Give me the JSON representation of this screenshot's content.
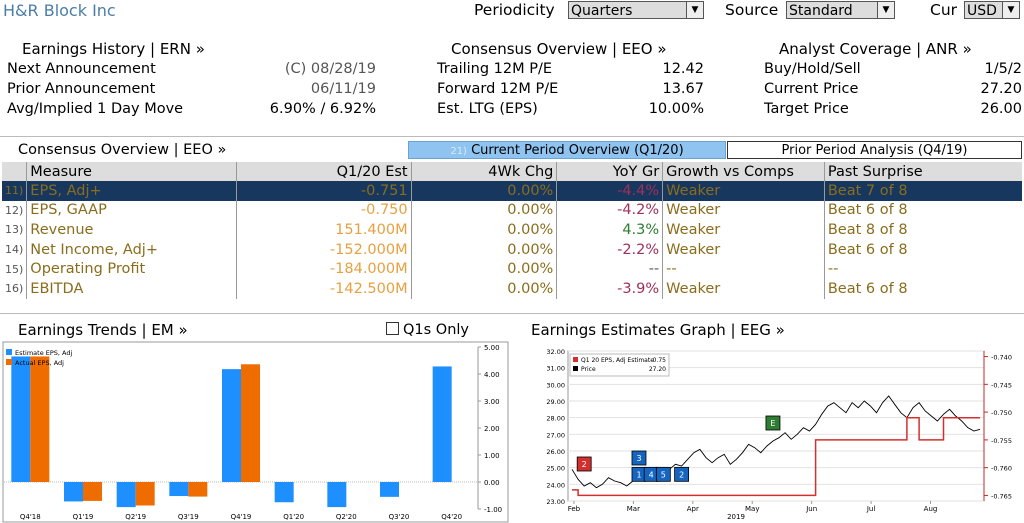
{
  "header": {
    "company": "H&R Block Inc",
    "periodicity_label": "Periodicity",
    "periodicity_value": "Quarters",
    "source_label": "Source",
    "source_value": "Standard",
    "cur_label": "Cur",
    "cur_value": "USD"
  },
  "earnings_history": {
    "title": "Earnings History | ERN »",
    "rows": [
      {
        "label": "Next Announcement",
        "value": "(C)  08/28/19"
      },
      {
        "label": "Prior Announcement",
        "value": "06/11/19"
      },
      {
        "label": "Avg/Implied 1 Day Move",
        "value": "6.90% / 6.92%"
      }
    ]
  },
  "consensus": {
    "title": "Consensus Overview | EEO »",
    "rows": [
      {
        "label": "Trailing 12M P/E",
        "value": "12.42"
      },
      {
        "label": "Forward 12M P/E",
        "value": "13.67"
      },
      {
        "label": "Est. LTG (EPS)",
        "value": "10.00%"
      }
    ]
  },
  "analyst": {
    "title": "Analyst Coverage | ANR »",
    "rows": [
      {
        "label": "Buy/Hold/Sell",
        "value": "1/5/2"
      },
      {
        "label": "Current Price",
        "value": "27.20"
      },
      {
        "label": "Target Price",
        "value": "26.00"
      }
    ]
  },
  "eeo_table": {
    "title": "Consensus Overview | EEO »",
    "tab_active_num": "21)",
    "tab_active": "Current Period Overview (Q1/20)",
    "tab_inactive": "Prior Period Analysis (Q4/19)",
    "columns": [
      "Measure",
      "Q1/20 Est",
      "4Wk Chg",
      "YoY Gr",
      "Growth vs Comps",
      "Past Surprise"
    ],
    "rows": [
      {
        "num": "11)",
        "measure": "EPS, Adj+",
        "est": "-0.751",
        "chg": "0.00%",
        "gr": "-4.4%",
        "cmp": "Weaker",
        "ps": "Beat 7 of 8"
      },
      {
        "num": "12)",
        "measure": "EPS, GAAP",
        "est": "-0.750",
        "chg": "0.00%",
        "gr": "-4.2%",
        "cmp": "Weaker",
        "ps": "Beat 6 of 8"
      },
      {
        "num": "13)",
        "measure": "Revenue",
        "est": "151.400M",
        "chg": "0.00%",
        "gr": "4.3%",
        "cmp": "Weaker",
        "ps": "Beat 8 of 8"
      },
      {
        "num": "14)",
        "measure": "Net Income, Adj+",
        "est": "-152.000M",
        "chg": "0.00%",
        "gr": "-2.2%",
        "cmp": "Weaker",
        "ps": "Beat 6 of 8"
      },
      {
        "num": "15)",
        "measure": "Operating Profit",
        "est": "-184.000M",
        "chg": "0.00%",
        "gr": "--",
        "cmp": "--",
        "ps": "--"
      },
      {
        "num": "16)",
        "measure": "EBITDA",
        "est": "-142.500M",
        "chg": "0.00%",
        "gr": "-3.9%",
        "cmp": "Weaker",
        "ps": "Beat 6 of 8"
      }
    ]
  },
  "earnings_trends": {
    "title": "Earnings Trends | EM »",
    "q1s_only": "Q1s Only"
  },
  "estimates_graph": {
    "title": "Earnings Estimates Graph | EEG »"
  },
  "colors": {
    "blue_bar": "#1e8fff",
    "orange_bar": "#ef6c00",
    "price_line": "#000000",
    "estimate_line": "#d32f2f"
  },
  "chart_data": [
    {
      "type": "bar",
      "legend": [
        "Estimate EPS, Adj",
        "Actual EPS, Adj"
      ],
      "categories": [
        "Q4'18",
        "Q1'19",
        "Q2'19",
        "Q3'19",
        "Q4'19",
        "Q1'20",
        "Q2'20",
        "Q3'20",
        "Q4'20"
      ],
      "series": [
        {
          "name": "Estimate EPS, Adj",
          "values": [
            4.65,
            -0.72,
            -0.93,
            -0.52,
            4.18,
            -0.75,
            -0.93,
            -0.55,
            4.28
          ]
        },
        {
          "name": "Actual EPS, Adj",
          "values": [
            4.65,
            -0.7,
            -0.87,
            -0.54,
            4.36,
            null,
            null,
            null,
            null
          ]
        }
      ],
      "ylim": [
        -1.0,
        5.0
      ],
      "yticks": [
        "5.00",
        "4.00",
        "3.00",
        "2.00",
        "1.00",
        "0.00",
        "-1.00"
      ]
    },
    {
      "type": "line",
      "legend": [
        {
          "name": "Q1 20 EPS, Adj Estimate",
          "value": "-0.75"
        },
        {
          "name": "Price",
          "value": "27.20"
        }
      ],
      "x_labels": [
        "Feb",
        "Mar",
        "Apr",
        "May",
        "Jun",
        "Jul",
        "Aug"
      ],
      "x_year": "2019",
      "left_ylim": [
        23.0,
        32.0
      ],
      "left_yticks": [
        "32.00",
        "31.00",
        "30.00",
        "29.00",
        "28.00",
        "27.00",
        "26.00",
        "25.00",
        "24.00",
        "23.00"
      ],
      "right_ylim": [
        -0.766,
        -0.739
      ],
      "right_yticks": [
        "-0.740",
        "-0.745",
        "-0.750",
        "-0.755",
        "-0.760",
        "-0.765"
      ],
      "price_series": [
        24.9,
        24.3,
        23.9,
        24.1,
        23.8,
        24.0,
        24.4,
        24.2,
        24.1,
        23.9,
        24.2,
        24.5,
        24.3,
        24.6,
        24.8,
        24.6,
        24.9,
        25.2,
        25.1,
        25.5,
        25.9,
        26.1,
        25.6,
        25.3,
        25.6,
        25.8,
        25.2,
        25.5,
        25.9,
        26.4,
        26.2,
        25.9,
        26.3,
        26.6,
        26.8,
        27.1,
        26.7,
        27.0,
        27.4,
        27.2,
        27.6,
        28.2,
        28.7,
        28.9,
        28.6,
        28.3,
        28.9,
        28.6,
        29.0,
        28.7,
        28.3,
        28.9,
        29.3,
        28.8,
        28.3,
        28.0,
        28.6,
        28.9,
        28.4,
        28.1,
        27.8,
        28.2,
        28.5,
        28.1,
        27.8,
        27.4,
        27.2,
        27.3
      ],
      "estimate_series": [
        -0.764,
        -0.765,
        -0.765,
        -0.765,
        -0.765,
        -0.765,
        -0.765,
        -0.765,
        -0.765,
        -0.765,
        -0.765,
        -0.765,
        -0.765,
        -0.765,
        -0.765,
        -0.765,
        -0.765,
        -0.765,
        -0.765,
        -0.765,
        -0.765,
        -0.765,
        -0.765,
        -0.765,
        -0.765,
        -0.765,
        -0.765,
        -0.765,
        -0.765,
        -0.765,
        -0.765,
        -0.765,
        -0.765,
        -0.765,
        -0.765,
        -0.765,
        -0.765,
        -0.765,
        -0.765,
        -0.765,
        -0.755,
        -0.755,
        -0.755,
        -0.755,
        -0.755,
        -0.755,
        -0.755,
        -0.755,
        -0.755,
        -0.755,
        -0.755,
        -0.755,
        -0.755,
        -0.755,
        -0.755,
        -0.751,
        -0.751,
        -0.755,
        -0.755,
        -0.755,
        -0.755,
        -0.751,
        -0.751,
        -0.751,
        -0.751,
        -0.751,
        -0.751,
        -0.751
      ],
      "markers": [
        {
          "label": "2",
          "color": "red",
          "index": 2
        },
        {
          "label": "3",
          "color": "blue",
          "index": 11
        },
        {
          "label": "1",
          "color": "blue",
          "index": 11
        },
        {
          "label": "4",
          "color": "blue",
          "index": 13
        },
        {
          "label": "5",
          "color": "blue",
          "index": 15
        },
        {
          "label": "2",
          "color": "blue",
          "index": 18
        },
        {
          "label": "E",
          "color": "green",
          "index": 33
        }
      ]
    }
  ]
}
